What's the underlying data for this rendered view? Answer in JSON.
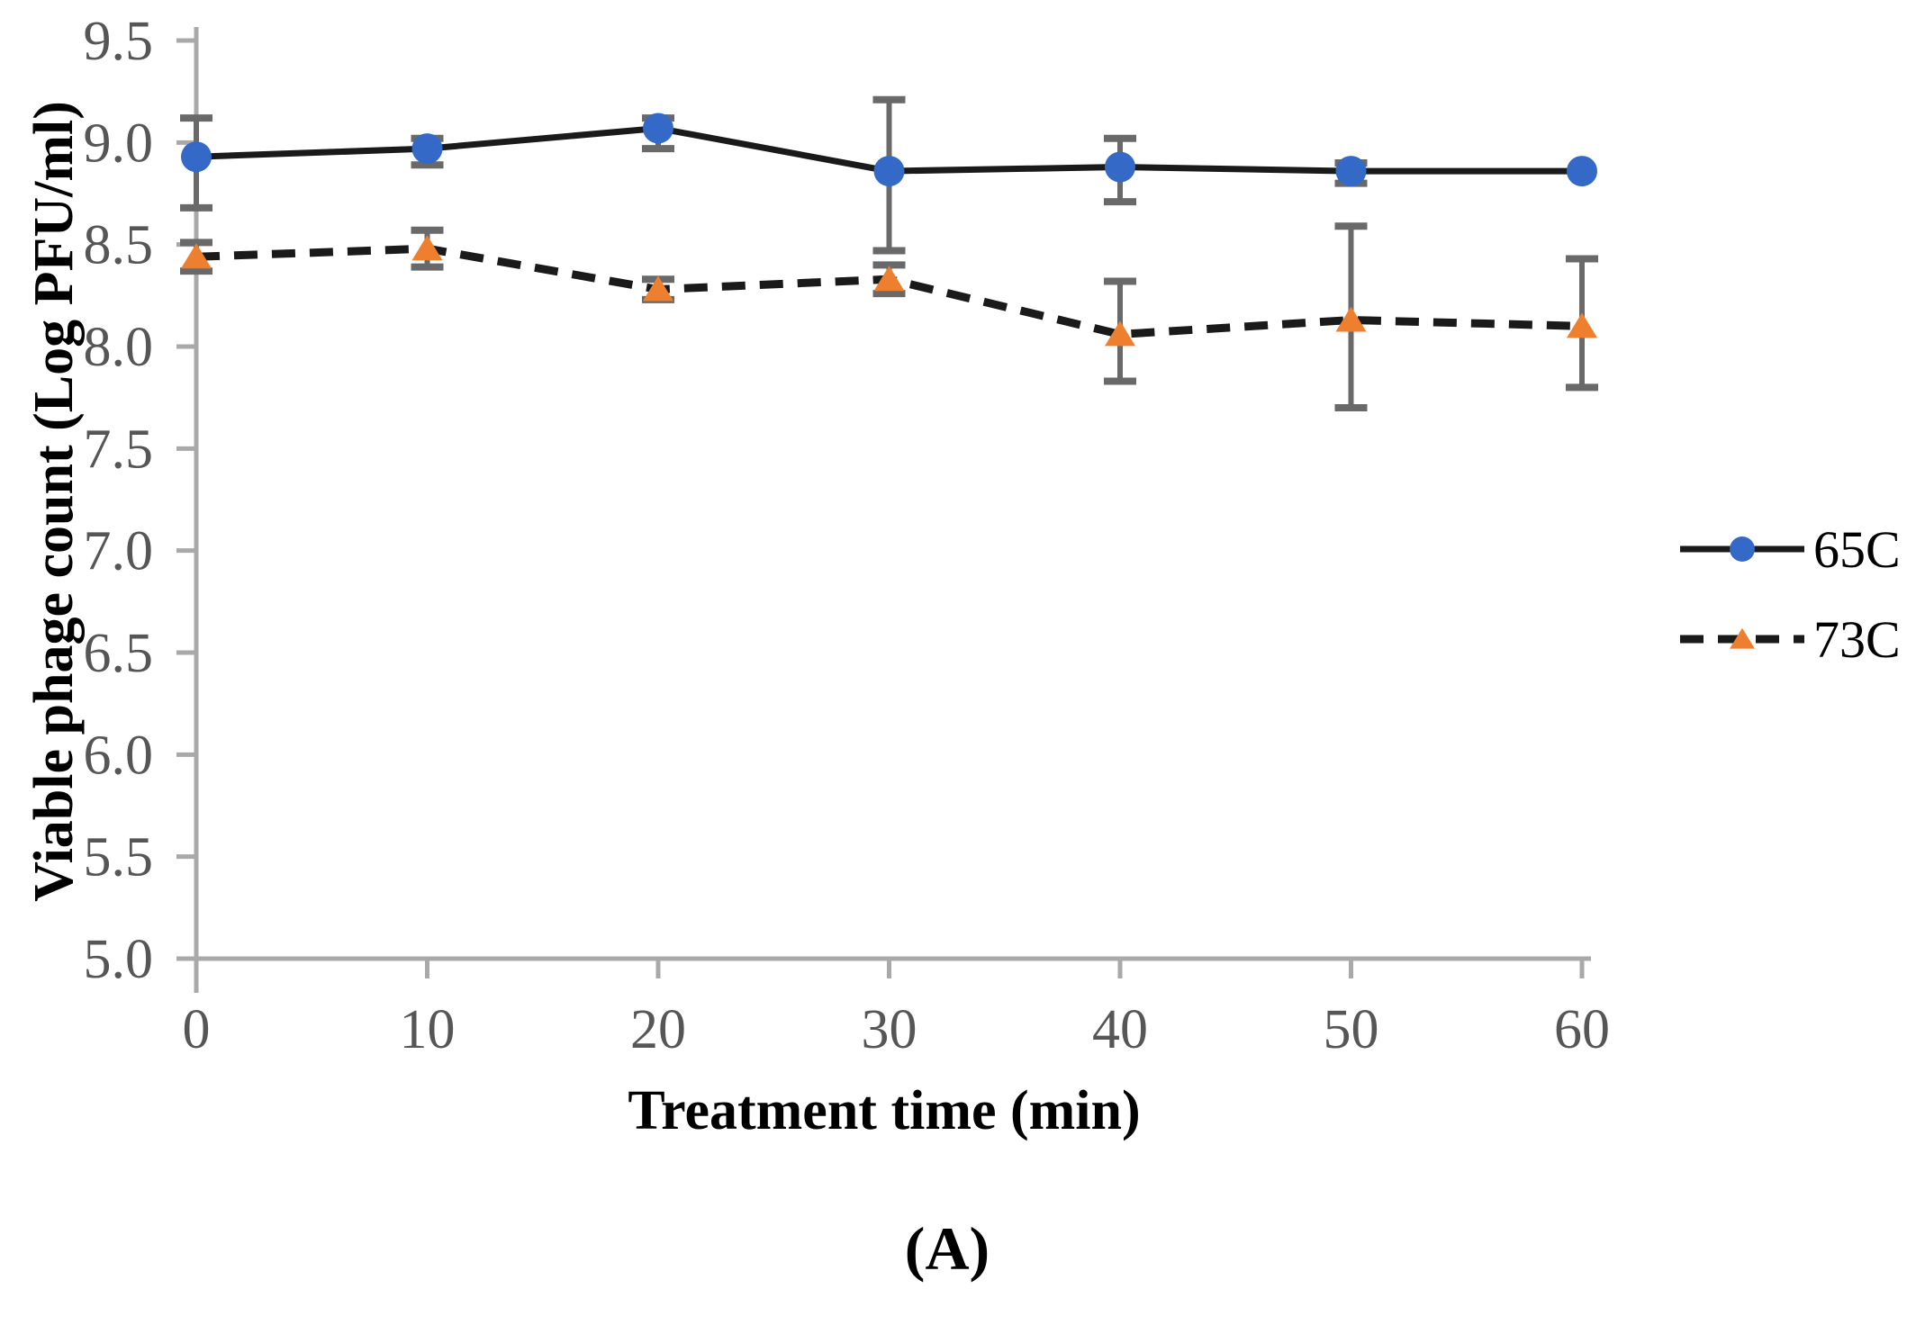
{
  "figure": {
    "caption": "(A)"
  },
  "chart_data": {
    "type": "line",
    "title": "",
    "xlabel": "Treatment time (min)",
    "ylabel": "Viable phage count (Log PFU/ml)",
    "xlim": [
      0,
      60
    ],
    "ylim": [
      5.0,
      9.5
    ],
    "grid": false,
    "legend_position": "right",
    "x": [
      0,
      10,
      20,
      30,
      40,
      50,
      60
    ],
    "x_tick_labels": [
      "0",
      "10",
      "20",
      "30",
      "40",
      "50",
      "60"
    ],
    "y_ticks": [
      5.0,
      5.5,
      6.0,
      6.5,
      7.0,
      7.5,
      8.0,
      8.5,
      9.0,
      9.5
    ],
    "y_tick_labels": [
      "5.0",
      "5.5",
      "6.0",
      "6.5",
      "7.0",
      "7.5",
      "8.0",
      "8.5",
      "9.0",
      "9.5"
    ],
    "series": [
      {
        "name": "65C",
        "marker": "circle",
        "marker_color": "#3569c7",
        "line_style": "solid",
        "line_color": "#1a1a1a",
        "values": [
          8.93,
          8.97,
          9.07,
          8.86,
          8.88,
          8.86,
          8.86
        ],
        "error_upper": [
          9.12,
          9.02,
          9.12,
          9.21,
          9.02,
          8.9,
          null
        ],
        "error_lower": [
          8.68,
          8.89,
          8.97,
          8.47,
          8.71,
          8.8,
          null
        ]
      },
      {
        "name": "73C",
        "marker": "triangle",
        "marker_color": "#ee7f2f",
        "line_style": "dashed",
        "line_color": "#1a1a1a",
        "values": [
          8.44,
          8.48,
          8.28,
          8.33,
          8.06,
          8.13,
          8.1
        ],
        "error_upper": [
          8.51,
          8.57,
          8.33,
          8.4,
          8.32,
          8.59,
          8.43
        ],
        "error_lower": [
          8.37,
          8.39,
          8.23,
          8.26,
          7.83,
          7.7,
          7.8
        ]
      }
    ],
    "colors": {
      "axis": "#a9a9a9",
      "error_bar": "#696969",
      "text": "#565656",
      "caption": "#111111"
    }
  }
}
